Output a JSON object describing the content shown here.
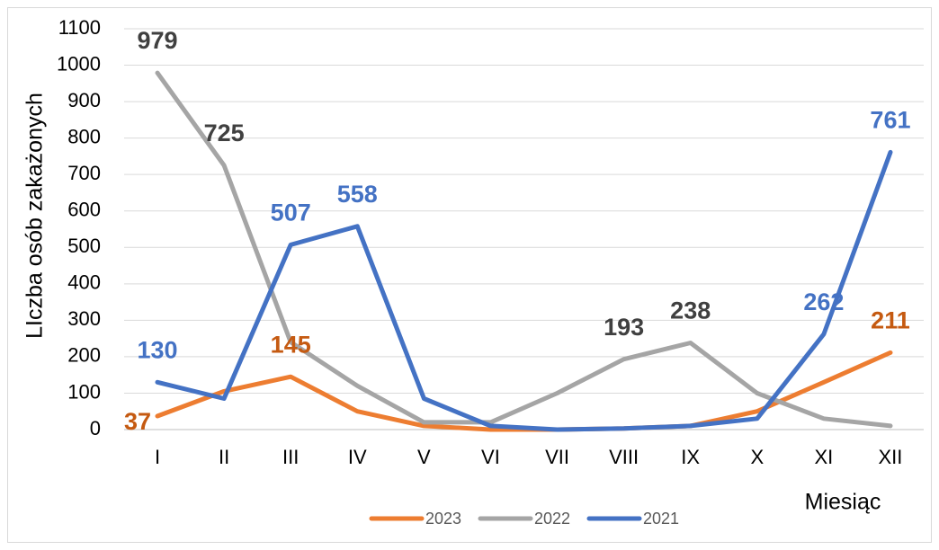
{
  "chart_data": {
    "type": "line",
    "y_label": "LIczba osób zakażonych",
    "x_label": "Miesiąc",
    "categories": [
      "I",
      "II",
      "III",
      "IV",
      "V",
      "VI",
      "VII",
      "VIII",
      "IX",
      "X",
      "XI",
      "XII"
    ],
    "series": [
      {
        "name": "2023",
        "color": "#ed7d31",
        "label_color": "#c55a11",
        "values": [
          37,
          105,
          145,
          50,
          10,
          0,
          0,
          3,
          10,
          50,
          130,
          211
        ],
        "value_labels": [
          "37",
          null,
          "145",
          null,
          null,
          null,
          null,
          null,
          null,
          null,
          null,
          "211"
        ]
      },
      {
        "name": "2022",
        "color": "#a5a5a5",
        "label_color": "#404040",
        "values": [
          979,
          725,
          240,
          120,
          20,
          20,
          100,
          193,
          238,
          100,
          30,
          10
        ],
        "value_labels": [
          "979",
          "725",
          null,
          null,
          null,
          null,
          null,
          "193",
          "238",
          null,
          null,
          null
        ]
      },
      {
        "name": "2021",
        "color": "#4472c4",
        "label_color": "#4472c4",
        "values": [
          130,
          85,
          507,
          558,
          85,
          10,
          0,
          3,
          10,
          30,
          262,
          761
        ],
        "value_labels": [
          "130",
          null,
          "507",
          "558",
          null,
          null,
          null,
          null,
          null,
          null,
          "262",
          "761"
        ]
      }
    ],
    "ylim": [
      0,
      1100
    ],
    "yticks": [
      0,
      100,
      200,
      300,
      400,
      500,
      600,
      700,
      800,
      900,
      1000,
      1100
    ],
    "grid": true,
    "legend": "bottom"
  }
}
